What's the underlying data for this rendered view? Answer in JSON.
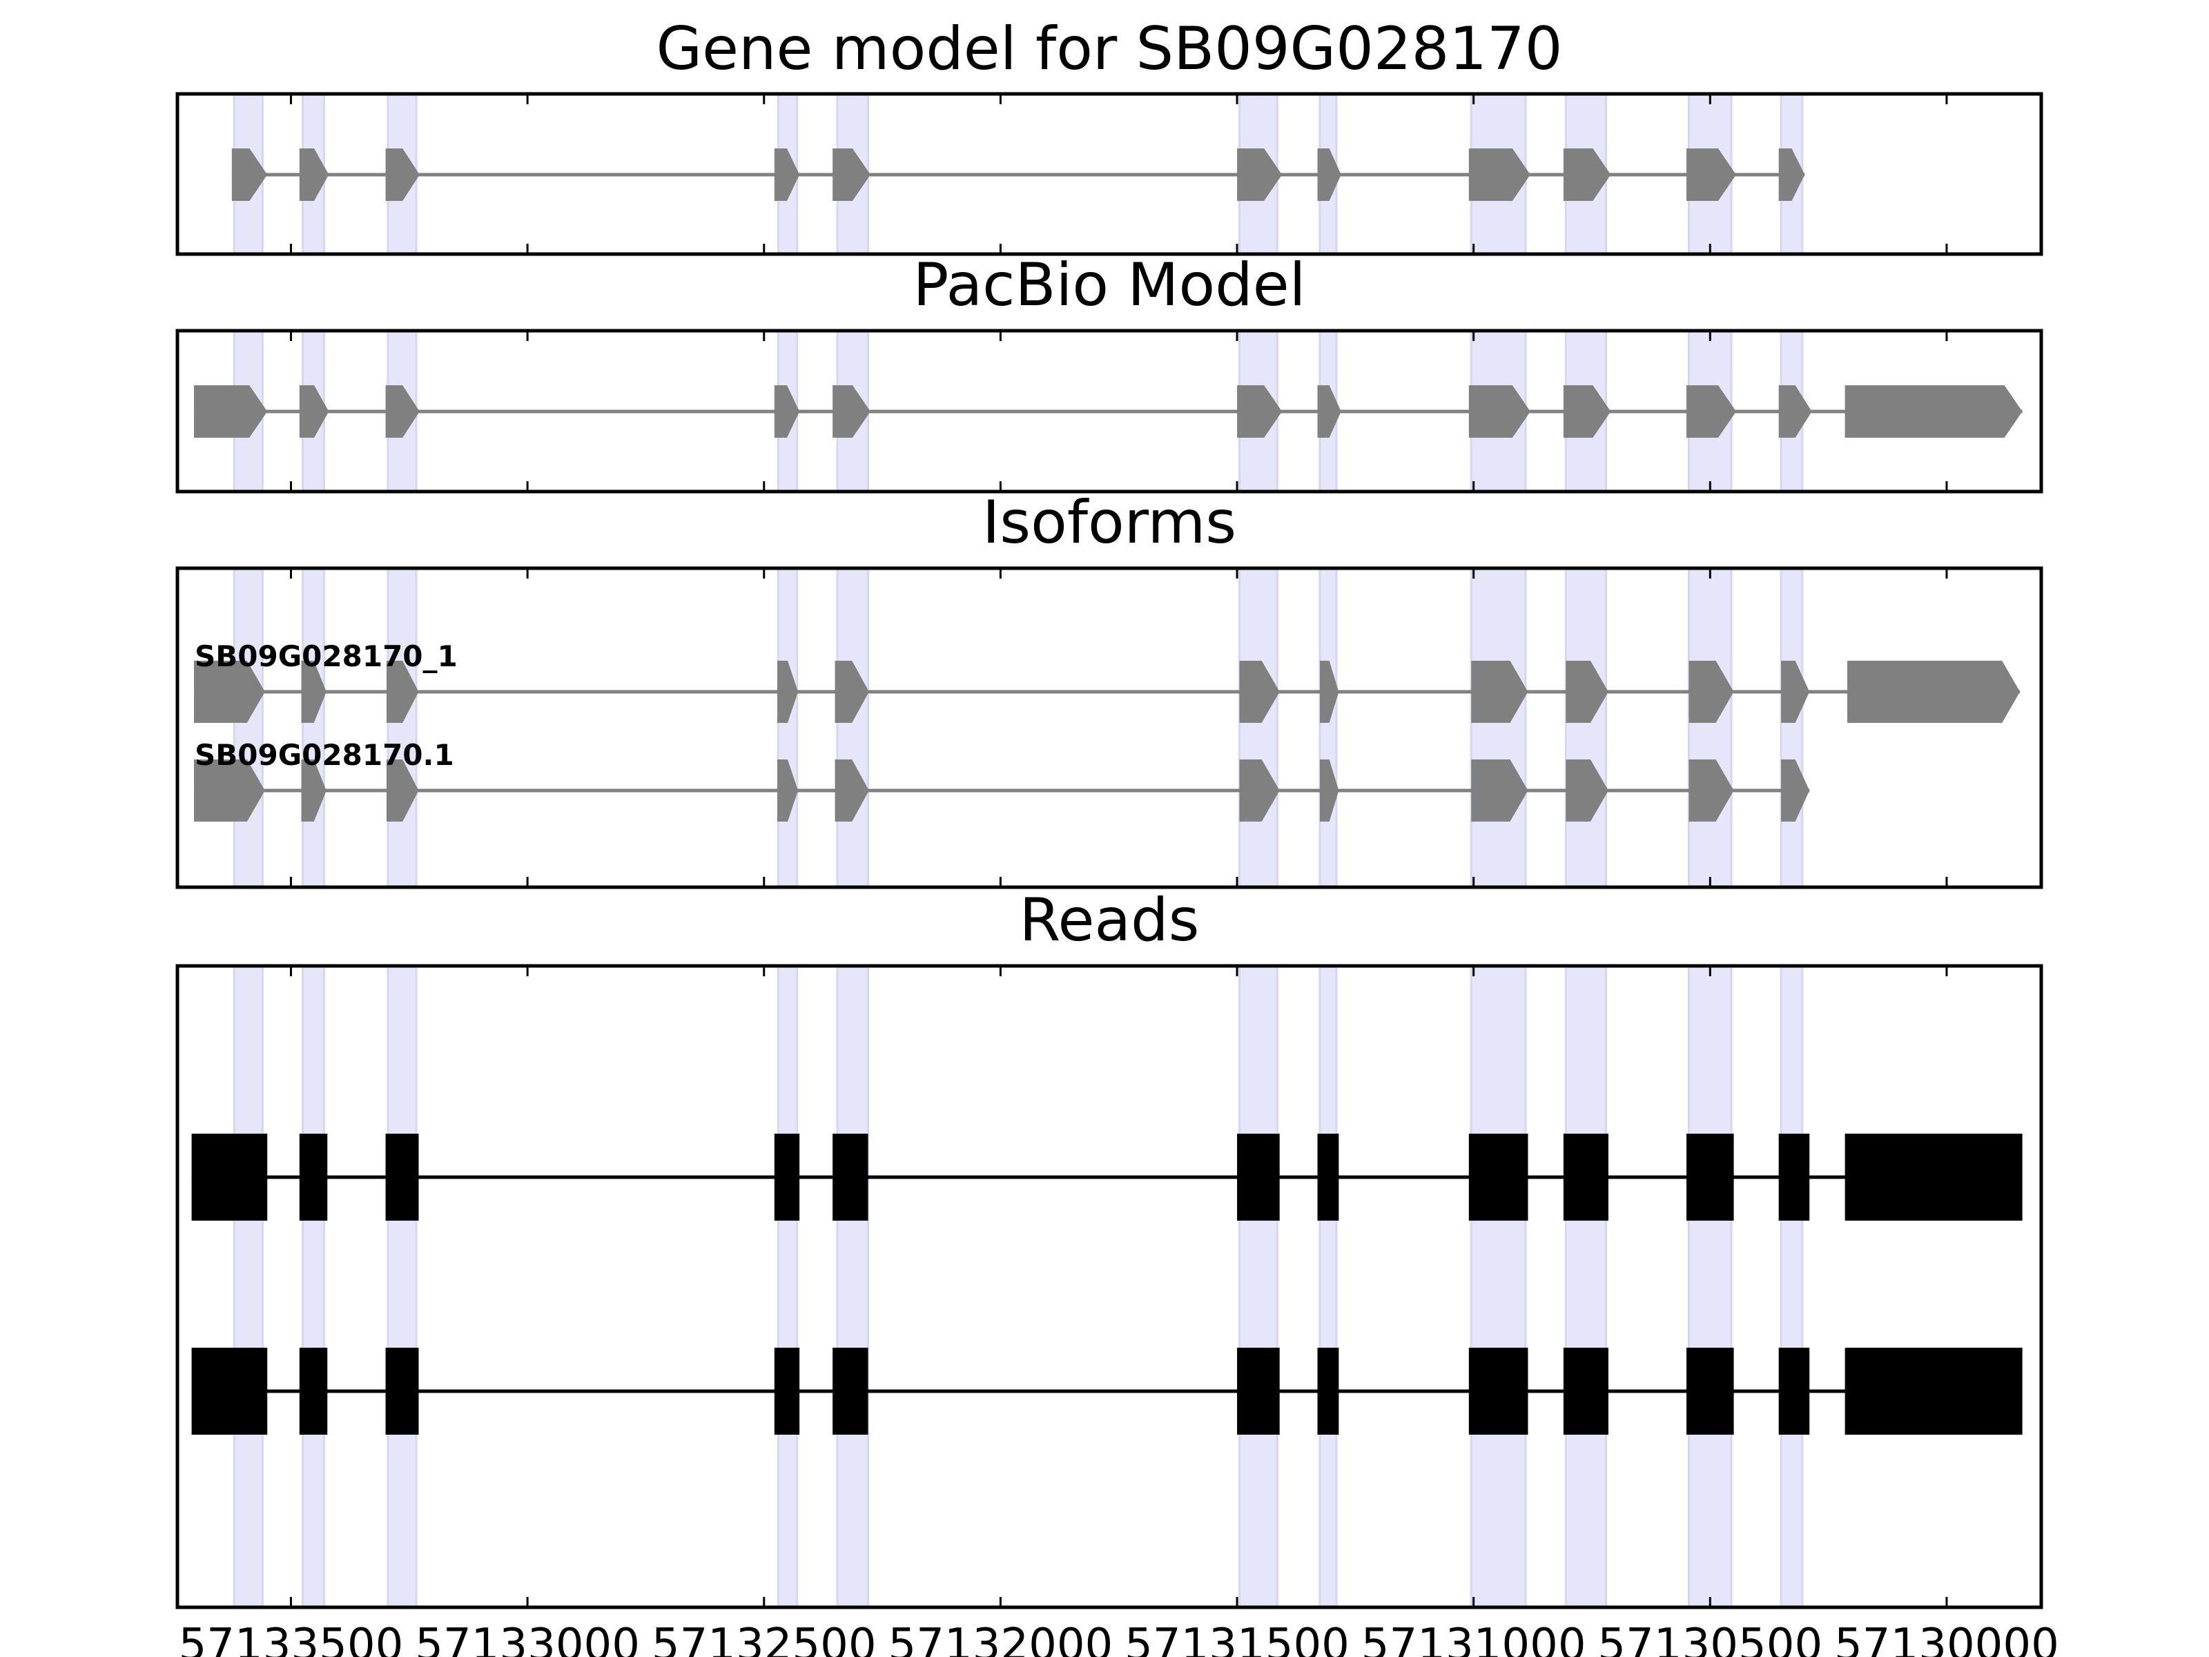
{
  "chart_data": {
    "type": "gene-structure",
    "x_axis": {
      "reversed": true,
      "xlim": [
        57133740,
        57129800
      ],
      "ticks": [
        57133500,
        57133000,
        57132500,
        57132000,
        57131500,
        57131000,
        57130500,
        57130000
      ],
      "tick_labels": [
        "57133500",
        "57133000",
        "57132500",
        "57132000",
        "57131500",
        "57131000",
        "57130500",
        "57130000"
      ]
    },
    "highlight_color": "#e6e6fa",
    "exon_color_models": "#808080",
    "exon_color_reads": "#000000",
    "highlighted_exons": [
      [
        57133620,
        57133560
      ],
      [
        57133475,
        57133430
      ],
      [
        57133295,
        57133235
      ],
      [
        57132470,
        57132430
      ],
      [
        57132345,
        57132280
      ],
      [
        57131495,
        57131415
      ],
      [
        57131325,
        57131290
      ],
      [
        57131005,
        57130890
      ],
      [
        57130805,
        57130720
      ],
      [
        57130545,
        57130455
      ],
      [
        57130350,
        57130305
      ]
    ],
    "panels": [
      {
        "title": "Gene model for SB09G028170",
        "tracks": [
          {
            "label": "",
            "exons": [
              [
                57133625,
                57133550
              ],
              [
                57133482,
                57133420
              ],
              [
                57133300,
                57133228
              ],
              [
                57132478,
                57132425
              ],
              [
                57132355,
                57132275
              ],
              [
                57131500,
                57131405
              ],
              [
                57131330,
                57131280
              ],
              [
                57131010,
                57130880
              ],
              [
                57130810,
                57130710
              ],
              [
                57130550,
                57130445
              ],
              [
                57130355,
                57130300
              ]
            ]
          }
        ]
      },
      {
        "title": "PacBio Model",
        "tracks": [
          {
            "label": "",
            "exons": [
              [
                57133705,
                57133550
              ],
              [
                57133482,
                57133420
              ],
              [
                57133300,
                57133228
              ],
              [
                57132478,
                57132425
              ],
              [
                57132355,
                57132275
              ],
              [
                57131500,
                57131405
              ],
              [
                57131330,
                57131280
              ],
              [
                57131010,
                57130880
              ],
              [
                57130810,
                57130710
              ],
              [
                57130550,
                57130445
              ],
              [
                57130355,
                57130285
              ],
              [
                57130215,
                57129840
              ]
            ]
          }
        ]
      },
      {
        "title": "Isoforms",
        "tracks": [
          {
            "label": "SB09G028170_1",
            "exons": [
              [
                57133705,
                57133555
              ],
              [
                57133478,
                57133425
              ],
              [
                57133298,
                57133230
              ],
              [
                57132472,
                57132428
              ],
              [
                57132350,
                57132278
              ],
              [
                57131495,
                57131410
              ],
              [
                57131325,
                57131285
              ],
              [
                57131005,
                57130885
              ],
              [
                57130805,
                57130715
              ],
              [
                57130545,
                57130450
              ],
              [
                57130350,
                57130290
              ],
              [
                57130210,
                57129845
              ]
            ]
          },
          {
            "label": "SB09G028170.1",
            "exons": [
              [
                57133705,
                57133555
              ],
              [
                57133478,
                57133425
              ],
              [
                57133298,
                57133230
              ],
              [
                57132472,
                57132428
              ],
              [
                57132350,
                57132278
              ],
              [
                57131495,
                57131410
              ],
              [
                57131325,
                57131285
              ],
              [
                57131005,
                57130885
              ],
              [
                57130805,
                57130715
              ],
              [
                57130545,
                57130450
              ],
              [
                57130350,
                57130290
              ]
            ]
          }
        ]
      },
      {
        "title": "Reads",
        "tracks": [
          {
            "label": "",
            "exons": [
              [
                57133710,
                57133550
              ],
              [
                57133482,
                57133423
              ],
              [
                57133300,
                57133230
              ],
              [
                57132478,
                57132425
              ],
              [
                57132355,
                57132280
              ],
              [
                57131500,
                57131410
              ],
              [
                57131330,
                57131285
              ],
              [
                57131010,
                57130885
              ],
              [
                57130810,
                57130715
              ],
              [
                57130550,
                57130450
              ],
              [
                57130355,
                57130290
              ],
              [
                57130215,
                57129840
              ]
            ]
          },
          {
            "label": "",
            "exons": [
              [
                57133710,
                57133550
              ],
              [
                57133482,
                57133423
              ],
              [
                57133300,
                57133230
              ],
              [
                57132478,
                57132425
              ],
              [
                57132355,
                57132280
              ],
              [
                57131500,
                57131410
              ],
              [
                57131330,
                57131285
              ],
              [
                57131010,
                57130885
              ],
              [
                57130810,
                57130715
              ],
              [
                57130550,
                57130450
              ],
              [
                57130355,
                57130290
              ],
              [
                57130215,
                57129840
              ]
            ]
          }
        ]
      }
    ]
  }
}
